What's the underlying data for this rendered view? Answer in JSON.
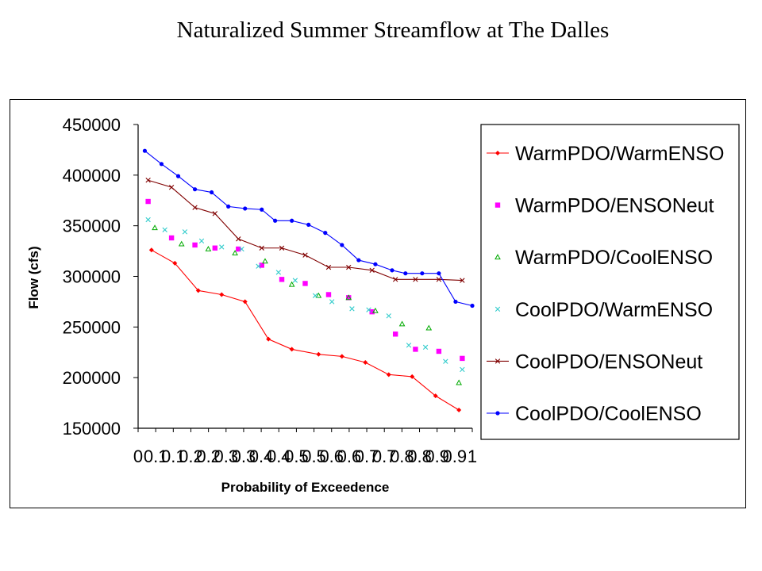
{
  "slide": {
    "title": "Naturalized Summer Streamflow at The Dalles"
  },
  "chart_data": {
    "type": "line",
    "title": "",
    "xlabel": "Probability of Exceedence",
    "ylabel": "Flow (cfs)",
    "xlim": [
      0,
      1
    ],
    "ylim": [
      150000,
      450000
    ],
    "x_ticks": [
      "0",
      "0.1",
      "0.1",
      "0.2",
      "0.2",
      "0.3",
      "0.3",
      "0.4",
      "0.4",
      "0.5",
      "0.5",
      "0.6",
      "0.6",
      "0.7",
      "0.7",
      "0.8",
      "0.8",
      "0.9",
      "0.9",
      "1"
    ],
    "y_ticks": [
      "150000",
      "200000",
      "250000",
      "300000",
      "350000",
      "400000",
      "450000"
    ],
    "grid": false,
    "legend_position": "right",
    "series": [
      {
        "name": "WarmPDO/WarmENSO",
        "color": "#ff0000",
        "marker": "diamond",
        "line": true,
        "x": [
          0.04,
          0.11,
          0.18,
          0.25,
          0.32,
          0.39,
          0.46,
          0.54,
          0.61,
          0.68,
          0.75,
          0.82,
          0.89,
          0.96
        ],
        "values": [
          326000,
          313000,
          286000,
          282000,
          275000,
          238000,
          228000,
          223000,
          221000,
          215000,
          203000,
          201000,
          182000,
          168000
        ]
      },
      {
        "name": "WarmPDO/ENSONeut",
        "color": "#ff00ff",
        "marker": "square",
        "line": false,
        "x": [
          0.03,
          0.1,
          0.17,
          0.23,
          0.3,
          0.37,
          0.43,
          0.5,
          0.57,
          0.63,
          0.7,
          0.77,
          0.83,
          0.9,
          0.97
        ],
        "values": [
          374000,
          338000,
          331000,
          328000,
          327000,
          311000,
          297000,
          293000,
          282000,
          279000,
          265000,
          243000,
          228000,
          226000,
          219000
        ]
      },
      {
        "name": "WarmPDO/CoolENSO",
        "color": "#00aa00",
        "marker": "triangle",
        "line": false,
        "x": [
          0.05,
          0.13,
          0.21,
          0.29,
          0.38,
          0.46,
          0.54,
          0.63,
          0.71,
          0.79,
          0.87,
          0.96
        ],
        "values": [
          348000,
          332000,
          327000,
          323000,
          315000,
          292000,
          281000,
          279000,
          266000,
          253000,
          249000,
          195000
        ]
      },
      {
        "name": "CoolPDO/WarmENSO",
        "color": "#33cccc",
        "marker": "x",
        "line": false,
        "x": [
          0.03,
          0.08,
          0.14,
          0.19,
          0.25,
          0.31,
          0.36,
          0.42,
          0.47,
          0.53,
          0.58,
          0.64,
          0.69,
          0.75,
          0.81,
          0.86,
          0.92,
          0.97
        ],
        "values": [
          356000,
          346000,
          344000,
          335000,
          329000,
          327000,
          310000,
          304000,
          296000,
          281000,
          275000,
          268000,
          267000,
          261000,
          232000,
          230000,
          216000,
          208000
        ]
      },
      {
        "name": "CoolPDO/ENSONeut",
        "color": "#800000",
        "marker": "x",
        "line": true,
        "x": [
          0.03,
          0.1,
          0.17,
          0.23,
          0.3,
          0.37,
          0.43,
          0.5,
          0.57,
          0.63,
          0.7,
          0.77,
          0.83,
          0.9,
          0.97
        ],
        "values": [
          395000,
          388000,
          368000,
          362000,
          337000,
          328000,
          328000,
          321000,
          309000,
          309000,
          306000,
          297000,
          297000,
          297000,
          296000
        ]
      },
      {
        "name": "CoolPDO/CoolENSO",
        "color": "#0000ff",
        "marker": "circle",
        "line": true,
        "x": [
          0.02,
          0.07,
          0.12,
          0.17,
          0.22,
          0.27,
          0.32,
          0.37,
          0.41,
          0.46,
          0.51,
          0.56,
          0.61,
          0.66,
          0.71,
          0.76,
          0.8,
          0.85,
          0.9,
          0.95,
          1.0
        ],
        "values": [
          424000,
          411000,
          399000,
          386000,
          383000,
          369000,
          367000,
          366000,
          355000,
          355000,
          351000,
          343000,
          331000,
          316000,
          312000,
          306000,
          303000,
          303000,
          303000,
          275000,
          271000
        ]
      }
    ]
  }
}
